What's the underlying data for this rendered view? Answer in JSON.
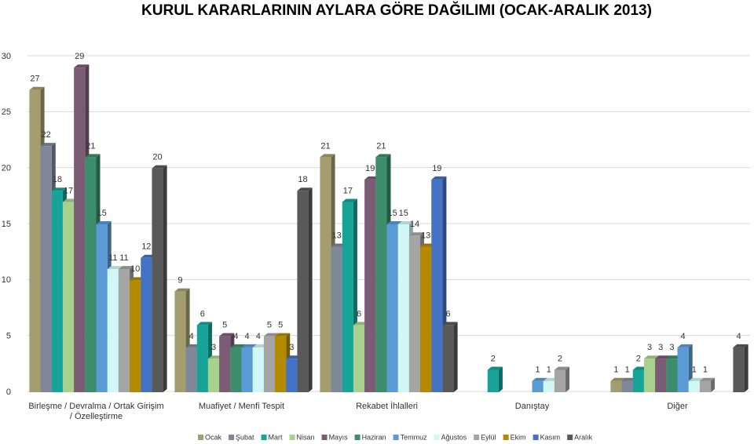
{
  "chart_data": {
    "type": "bar",
    "title": "KURUL KARARLARININ AYLARA GÖRE DAĞILIMI (OCAK-ARALIK 2013)",
    "categories": [
      "Birleşme / Devralma / Ortak Girişim / Özelleştirme",
      "Muafiyet / Menfi Tespit",
      "Rekabet İhlalleri",
      "Danıştay",
      "Diğer"
    ],
    "series": [
      {
        "name": "Ocak",
        "color": "#a39d6f",
        "values": [
          27,
          9,
          21,
          null,
          1
        ]
      },
      {
        "name": "Şubat",
        "color": "#7f8899",
        "values": [
          22,
          4,
          13,
          null,
          1
        ]
      },
      {
        "name": "Mart",
        "color": "#17a398",
        "values": [
          18,
          6,
          17,
          2,
          2
        ]
      },
      {
        "name": "Nisan",
        "color": "#a9d18e",
        "values": [
          17,
          3,
          6,
          null,
          3
        ]
      },
      {
        "name": "Mayıs",
        "color": "#7c5b75",
        "values": [
          29,
          5,
          19,
          null,
          3
        ]
      },
      {
        "name": "Haziran",
        "color": "#3b8d6c",
        "values": [
          21,
          4,
          21,
          null,
          3
        ]
      },
      {
        "name": "Temmuz",
        "color": "#5b9bd5",
        "values": [
          15,
          4,
          15,
          1,
          4
        ]
      },
      {
        "name": "Ağustos",
        "color": "#d2f7f7",
        "values": [
          11,
          4,
          15,
          1,
          1
        ]
      },
      {
        "name": "Eylül",
        "color": "#a5a5a5",
        "values": [
          11,
          5,
          14,
          2,
          1
        ]
      },
      {
        "name": "Ekim",
        "color": "#b38a00",
        "values": [
          10,
          5,
          13,
          null,
          null
        ]
      },
      {
        "name": "Kasım",
        "color": "#4472c4",
        "values": [
          12,
          3,
          19,
          null,
          null
        ]
      },
      {
        "name": "Aralık",
        "color": "#595959",
        "values": [
          20,
          18,
          6,
          null,
          4
        ]
      }
    ],
    "ylim": [
      0,
      30
    ],
    "yticks": [
      0,
      5,
      10,
      15,
      20,
      25,
      30
    ],
    "grid": true,
    "legend": "bottom"
  }
}
